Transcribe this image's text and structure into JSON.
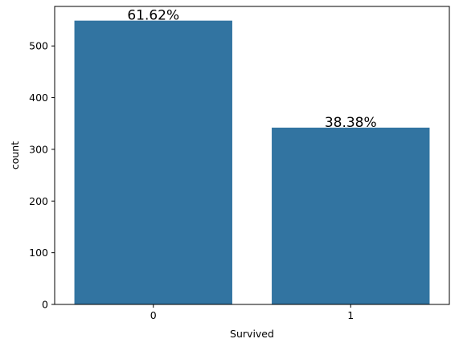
{
  "chart_data": {
    "type": "bar",
    "categories": [
      "0",
      "1"
    ],
    "values": [
      549,
      342
    ],
    "data_labels": [
      "61.62%",
      "38.38%"
    ],
    "title": "",
    "xlabel": "Survived",
    "ylabel": "count",
    "ylim": [
      0,
      576.45
    ],
    "yticks": [
      0,
      100,
      200,
      300,
      400,
      500
    ],
    "bar_color": "#3274a1",
    "grid": false
  }
}
